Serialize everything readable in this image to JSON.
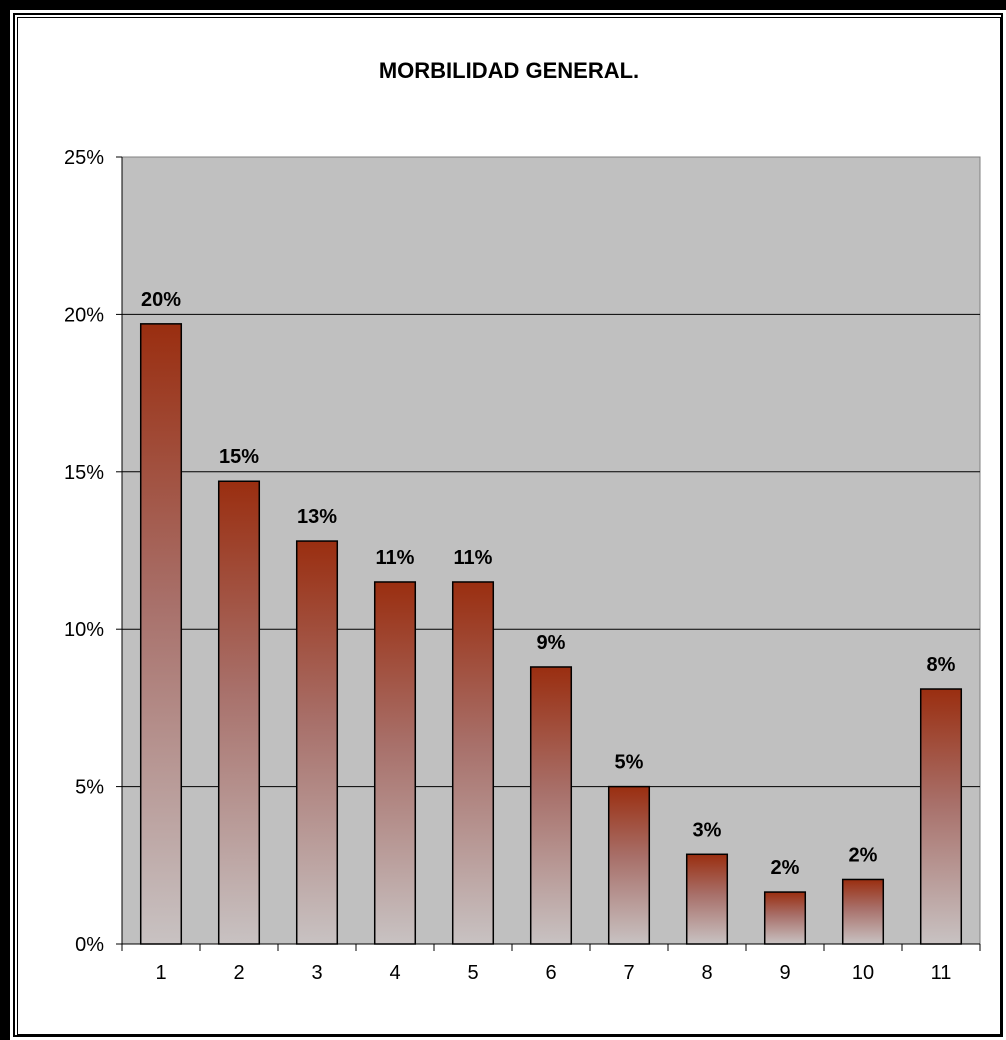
{
  "chart_data": {
    "type": "bar",
    "title": "MORBILIDAD GENERAL.",
    "xlabel": "",
    "ylabel": "",
    "categories": [
      "1",
      "2",
      "3",
      "4",
      "5",
      "6",
      "7",
      "8",
      "9",
      "10",
      "11"
    ],
    "values": [
      19.7,
      14.7,
      12.8,
      11.5,
      11.5,
      8.8,
      5.0,
      2.85,
      1.65,
      2.05,
      8.1
    ],
    "data_labels": [
      "20%",
      "15%",
      "13%",
      "11%",
      "11%",
      "9%",
      "5%",
      "3%",
      "2%",
      "2%",
      "8%"
    ],
    "ylim": [
      0,
      25
    ],
    "y_ticks": [
      "0%",
      "5%",
      "10%",
      "15%",
      "20%",
      "25%"
    ],
    "grid": true,
    "legend": "none",
    "colors": {
      "plot_background": "#c0c0c0",
      "bar_top": "#9a2e10",
      "bar_bottom": "#c8c2c2",
      "gridline": "#000000"
    }
  }
}
